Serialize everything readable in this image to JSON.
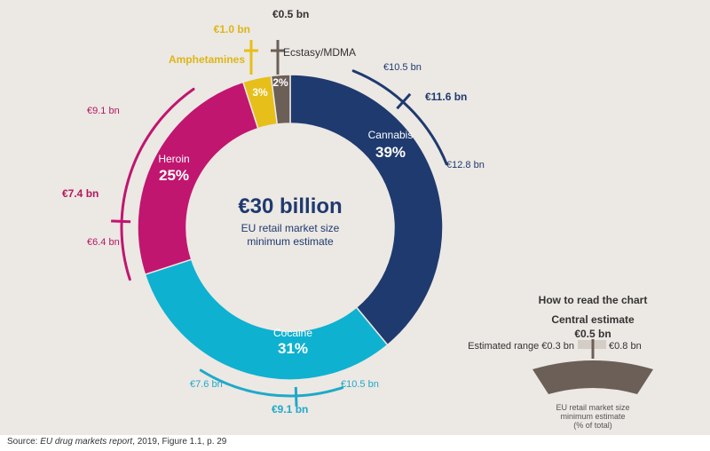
{
  "chart_data": {
    "type": "pie",
    "donut": true,
    "center_title": "€30 billion",
    "center_subtitle_lines": [
      "EU retail market size",
      "minimum estimate"
    ],
    "slices": [
      {
        "name": "Cannabis",
        "percent_label": "39%",
        "share": 39,
        "central": "€11.6 bn",
        "low": "€10.5 bn",
        "high": "€12.8 bn",
        "color": "#1f3a6e",
        "label_color": "#1f3a6e"
      },
      {
        "name": "Cocaine",
        "percent_label": "31%",
        "share": 31,
        "central": "€9.1 bn",
        "low": "€7.6 bn",
        "high": "€10.5 bn",
        "color": "#0fb1d0",
        "label_color": "#1fa9c9"
      },
      {
        "name": "Heroin",
        "percent_label": "25%",
        "share": 25,
        "central": "€7.4 bn",
        "low": "€6.4 bn",
        "high": "€9.1 bn",
        "color": "#c0166f",
        "label_color": "#b5175f"
      },
      {
        "name": "Amphetamines",
        "percent_label": "3%",
        "share": 3,
        "central": "€1.0 bn",
        "color": "#e6bf1a",
        "label_color": "#dcb616"
      },
      {
        "name": "Ecstasy/MDMA",
        "percent_label": "2%",
        "share": 2,
        "central": "€0.5 bn",
        "color": "#6b5f57",
        "label_color": "#333333"
      }
    ]
  },
  "legend": {
    "title": "How to read the chart",
    "central_label": "Central estimate",
    "central_value": "€0.5 bn",
    "range_label": "Estimated range",
    "range_low": "€0.3 bn",
    "range_high": "€0.8 bn",
    "caption_lines": [
      "EU retail market size",
      "minimum estimate",
      "(% of total)"
    ]
  },
  "source": {
    "prefix": "Source: ",
    "title": "EU drug markets report",
    "suffix": ", 2019, Figure 1.1, p. 29"
  }
}
